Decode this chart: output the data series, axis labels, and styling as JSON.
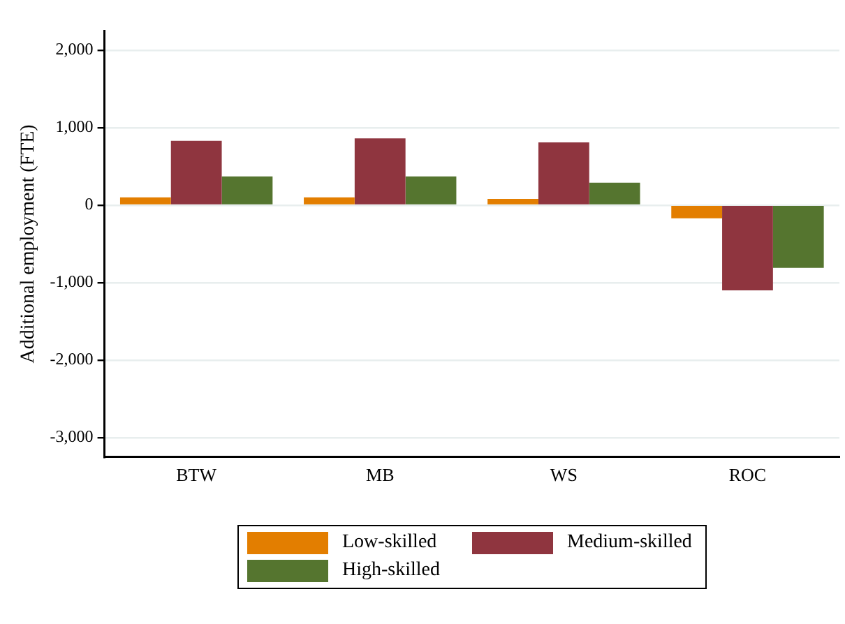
{
  "chart_data": {
    "type": "bar",
    "ylabel": "Additional employment (FTE)",
    "categories": [
      "BTW",
      "MB",
      "WS",
      "ROC"
    ],
    "series": [
      {
        "name": "Low-skilled",
        "color": "#e37e00",
        "values": [
          100,
          100,
          80,
          -170
        ]
      },
      {
        "name": "Medium-skilled",
        "color": "#8f353f",
        "values": [
          830,
          860,
          810,
          -1100
        ]
      },
      {
        "name": "High-skilled",
        "color": "#55752f",
        "values": [
          370,
          370,
          290,
          -810
        ]
      }
    ],
    "ylim": [
      -3250,
      2250
    ],
    "yticks": [
      {
        "value": -3000,
        "label": "-3,000"
      },
      {
        "value": -2000,
        "label": "-2,000"
      },
      {
        "value": -1000,
        "label": "-1,000"
      },
      0,
      {
        "value": 1000,
        "label": "1,000"
      },
      {
        "value": 2000,
        "label": "2,000"
      }
    ],
    "grid": "y",
    "legend": "bottom"
  }
}
